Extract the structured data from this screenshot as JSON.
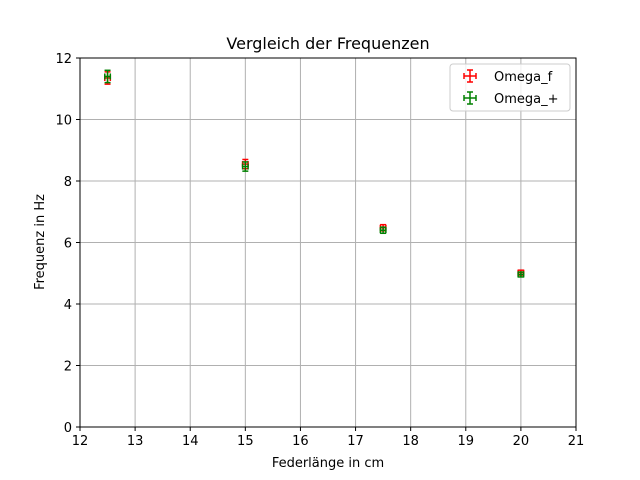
{
  "chart_data": {
    "type": "scatter",
    "title": "Vergleich der Frequenzen",
    "xlabel": "Federlänge in cm",
    "ylabel": "Frequenz in Hz",
    "xlim": [
      12,
      21
    ],
    "ylim": [
      0,
      12
    ],
    "xticks": [
      12,
      13,
      14,
      15,
      16,
      17,
      18,
      19,
      20,
      21
    ],
    "yticks": [
      0,
      2,
      4,
      6,
      8,
      10,
      12
    ],
    "grid": true,
    "legend_position": "upper right",
    "x": [
      12.5,
      15,
      17.5,
      20
    ],
    "series": [
      {
        "name": "Omega_f",
        "color": "#ff0000",
        "values": [
          11.35,
          8.55,
          6.48,
          5.02
        ],
        "yerr": [
          0.2,
          0.15,
          0.1,
          0.08
        ],
        "xerr": [
          0.05,
          0.05,
          0.05,
          0.05
        ]
      },
      {
        "name": "Omega_+",
        "color": "#008000",
        "values": [
          11.4,
          8.47,
          6.4,
          4.96
        ],
        "yerr": [
          0.2,
          0.15,
          0.1,
          0.08
        ],
        "xerr": [
          0.05,
          0.05,
          0.05,
          0.05
        ]
      }
    ]
  }
}
